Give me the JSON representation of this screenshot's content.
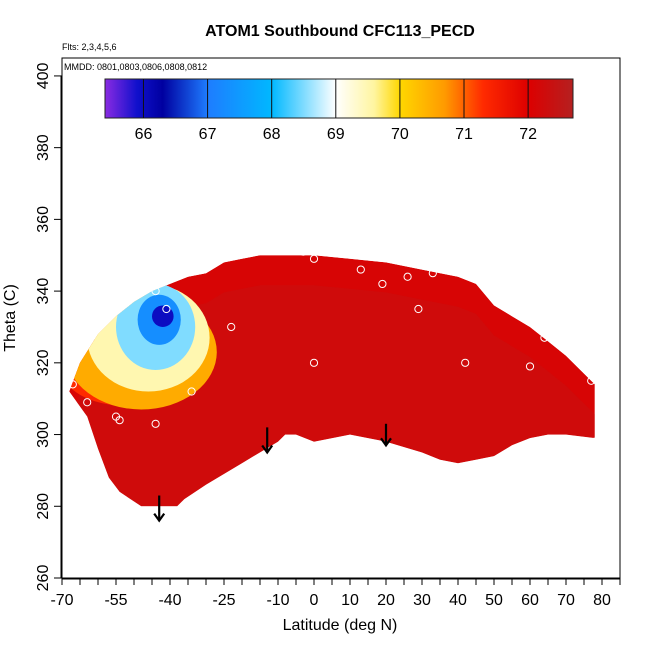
{
  "chart_data": {
    "type": "heatmap",
    "title": "ATOM1 Southbound CFC113_PECD",
    "subtitle_flights": "Flts: 2,3,4,5,6",
    "subtitle_dates": "MMDD: 0801,0803,0806,0808,0812",
    "xlabel": "Latitude (deg N)",
    "ylabel": "Theta (C)",
    "xlim": [
      -70,
      85
    ],
    "ylim": [
      260,
      405
    ],
    "x_ticks": [
      -70,
      -55,
      -40,
      -25,
      -10,
      0,
      10,
      20,
      30,
      40,
      50,
      60,
      70,
      80
    ],
    "x_tick_labels": [
      "-70",
      "-55",
      "-40",
      "-25",
      "-10",
      "0",
      "10",
      "20",
      "30",
      "40",
      "50",
      "60",
      "70",
      "80"
    ],
    "x_minor_step": 5,
    "y_ticks": [
      260,
      280,
      300,
      320,
      340,
      360,
      380,
      400
    ],
    "y_tick_labels": [
      "260",
      "280",
      "300",
      "320",
      "340",
      "360",
      "380",
      "400"
    ],
    "colorbar": {
      "range": [
        65.4,
        72.7
      ],
      "ticks": [
        66,
        67,
        68,
        69,
        70,
        71,
        72
      ],
      "tick_labels": [
        "66",
        "67",
        "68",
        "69",
        "70",
        "71",
        "72"
      ],
      "stops": [
        {
          "value": 65.4,
          "color": "#8a2be2"
        },
        {
          "value": 65.9,
          "color": "#1010cc"
        },
        {
          "value": 66.3,
          "color": "#0000a0"
        },
        {
          "value": 67.0,
          "color": "#1e7cff"
        },
        {
          "value": 68.0,
          "color": "#00b8ff"
        },
        {
          "value": 69.0,
          "color": "#ffffff"
        },
        {
          "value": 69.6,
          "color": "#fff5a0"
        },
        {
          "value": 70.0,
          "color": "#ffd700"
        },
        {
          "value": 70.7,
          "color": "#ff9a00"
        },
        {
          "value": 71.3,
          "color": "#ff2a00"
        },
        {
          "value": 72.0,
          "color": "#dd0000"
        },
        {
          "value": 72.7,
          "color": "#b52020"
        }
      ]
    },
    "field": {
      "background_value": 72.1,
      "upper_boundary": [
        [
          -68,
          312
        ],
        [
          -65,
          320
        ],
        [
          -60,
          328
        ],
        [
          -55,
          333
        ],
        [
          -50,
          337
        ],
        [
          -45,
          340
        ],
        [
          -40,
          342
        ],
        [
          -35,
          344
        ],
        [
          -30,
          345
        ],
        [
          -25,
          348
        ],
        [
          -20,
          349
        ],
        [
          -15,
          350
        ],
        [
          -10,
          350
        ],
        [
          0,
          350
        ],
        [
          10,
          349
        ],
        [
          20,
          348
        ],
        [
          30,
          346
        ],
        [
          40,
          344
        ],
        [
          45,
          342
        ],
        [
          50,
          336
        ],
        [
          55,
          333
        ],
        [
          60,
          330
        ],
        [
          65,
          326
        ],
        [
          70,
          322
        ],
        [
          75,
          317
        ],
        [
          78,
          314
        ],
        [
          78,
          299
        ]
      ],
      "lower_boundary": [
        [
          -68,
          312
        ],
        [
          -63,
          305
        ],
        [
          -60,
          296
        ],
        [
          -57,
          288
        ],
        [
          -54,
          284
        ],
        [
          -51,
          282
        ],
        [
          -48,
          280
        ],
        [
          -38,
          280
        ],
        [
          -36,
          282
        ],
        [
          -30,
          286
        ],
        [
          -20,
          292
        ],
        [
          -10,
          298
        ],
        [
          -8,
          300
        ],
        [
          -5,
          300
        ],
        [
          0,
          298
        ],
        [
          10,
          300
        ],
        [
          20,
          298
        ],
        [
          30,
          295
        ],
        [
          35,
          293
        ],
        [
          40,
          292
        ],
        [
          45,
          293
        ],
        [
          50,
          294
        ],
        [
          55,
          297
        ],
        [
          60,
          299
        ],
        [
          65,
          300
        ],
        [
          70,
          300
        ],
        [
          78,
          299
        ]
      ],
      "anomalies": [
        {
          "lat": -42,
          "theta": 333,
          "value": 66.0,
          "rx": 3,
          "ry": 3
        },
        {
          "lat": -43,
          "theta": 332,
          "value": 67.3,
          "rx": 6,
          "ry": 7
        },
        {
          "lat": -44,
          "theta": 330,
          "value": 68.5,
          "rx": 11,
          "ry": 12
        },
        {
          "lat": -46,
          "theta": 327,
          "value": 69.5,
          "rx": 17,
          "ry": 15
        },
        {
          "lat": -48,
          "theta": 323,
          "value": 70.5,
          "rx": 21,
          "ry": 16
        },
        {
          "lat": -52,
          "theta": 318,
          "value": 71.3,
          "rx": 18,
          "ry": 10
        }
      ]
    },
    "sample_points": [
      {
        "lat": -67,
        "theta": 314
      },
      {
        "lat": -63,
        "theta": 309
      },
      {
        "lat": -55,
        "theta": 305
      },
      {
        "lat": -54,
        "theta": 304
      },
      {
        "lat": -44,
        "theta": 340
      },
      {
        "lat": -41,
        "theta": 335
      },
      {
        "lat": -44,
        "theta": 303
      },
      {
        "lat": -34,
        "theta": 312
      },
      {
        "lat": -23,
        "theta": 330
      },
      {
        "lat": -3,
        "theta": 351
      },
      {
        "lat": 0,
        "theta": 349
      },
      {
        "lat": 0,
        "theta": 320
      },
      {
        "lat": 13,
        "theta": 346
      },
      {
        "lat": 19,
        "theta": 342
      },
      {
        "lat": 26,
        "theta": 344
      },
      {
        "lat": 29,
        "theta": 335
      },
      {
        "lat": 33,
        "theta": 345
      },
      {
        "lat": 42,
        "theta": 320
      },
      {
        "lat": 60,
        "theta": 319
      },
      {
        "lat": 64,
        "theta": 327
      },
      {
        "lat": 77,
        "theta": 315
      },
      {
        "lat": 78,
        "theta": 298
      }
    ],
    "arrows": [
      {
        "lat": -13,
        "theta_top": 302,
        "theta_tip": 295
      },
      {
        "lat": 20,
        "theta_top": 303,
        "theta_tip": 297
      },
      {
        "lat": -43,
        "theta_top": 283,
        "theta_tip": 276
      }
    ]
  }
}
